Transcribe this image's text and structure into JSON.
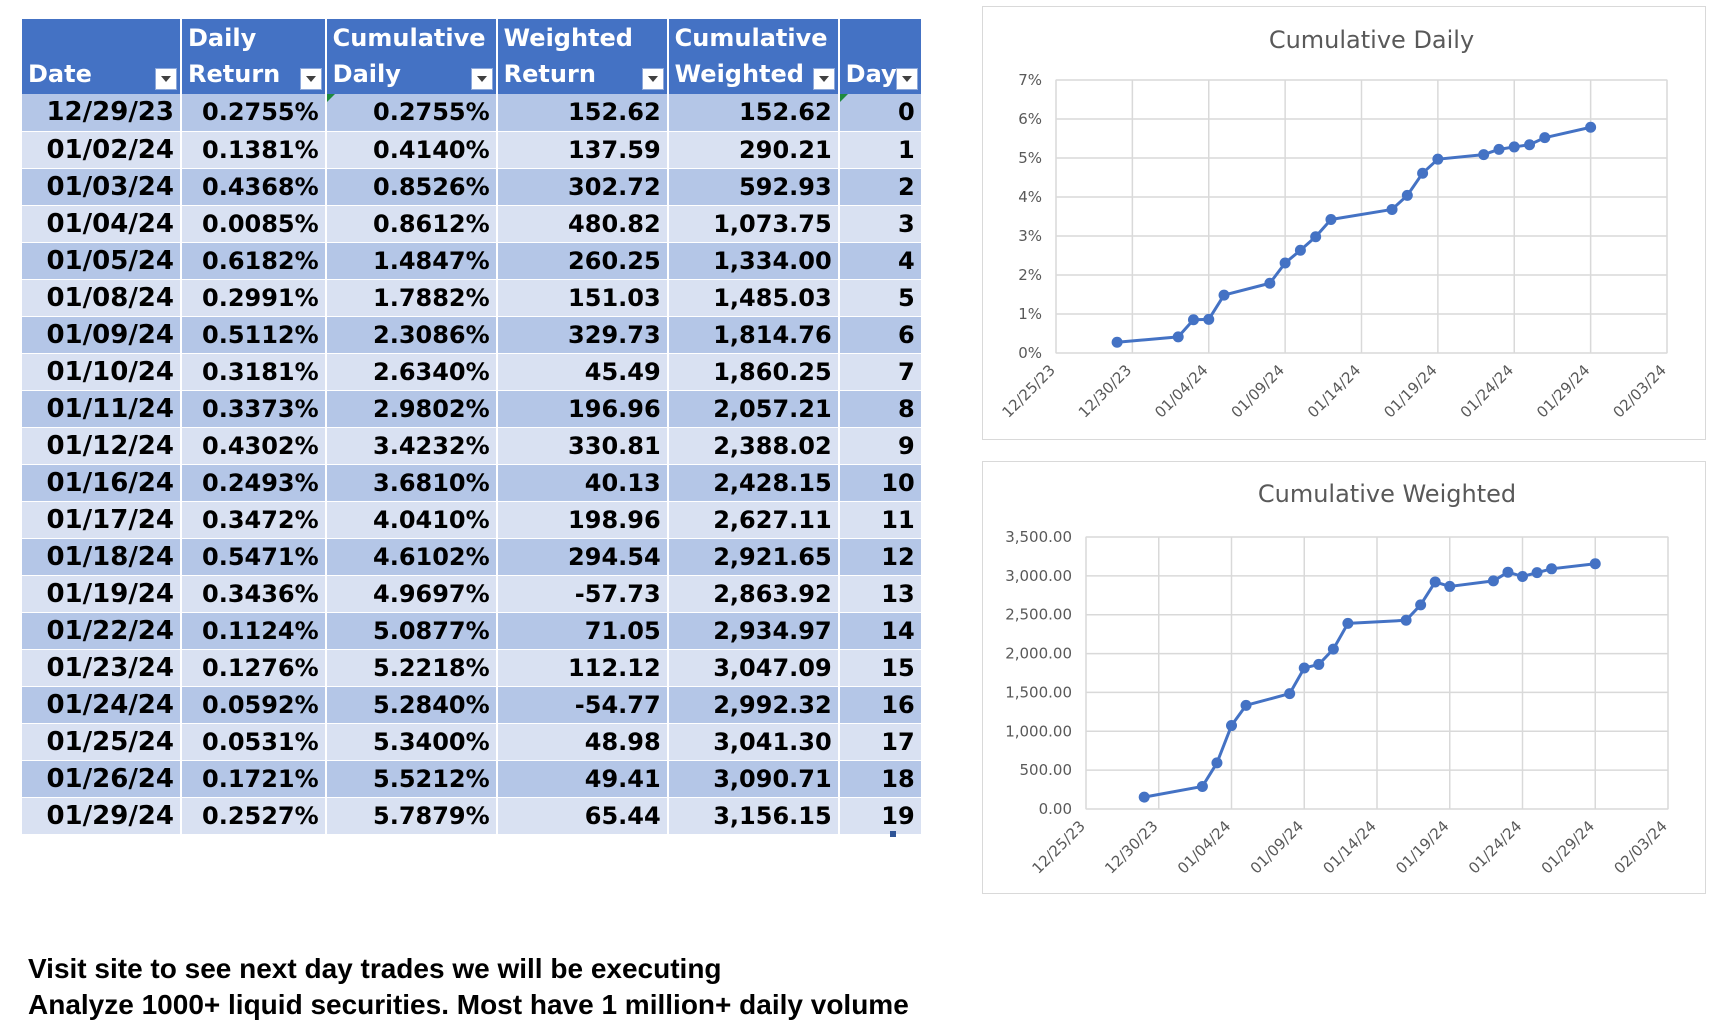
{
  "table": {
    "headers": [
      {
        "lines": [
          "",
          "Date"
        ],
        "filter": "filter-dropdown"
      },
      {
        "lines": [
          "Daily",
          "Return"
        ],
        "filter": "filter-dropdown"
      },
      {
        "lines": [
          "Cumulative",
          "Daily"
        ],
        "filter": "filter-dropdown"
      },
      {
        "lines": [
          "Weighted",
          "Return"
        ],
        "filter": "filter-dropdown"
      },
      {
        "lines": [
          "Cumulative",
          "Weighted"
        ],
        "filter": "filter-dropdown"
      },
      {
        "lines": [
          "",
          "Day"
        ],
        "filter": "filter-dropdown"
      }
    ],
    "rows": [
      [
        "12/29/23",
        "0.2755%",
        "0.2755%",
        "152.62",
        "152.62",
        "0"
      ],
      [
        "01/02/24",
        "0.1381%",
        "0.4140%",
        "137.59",
        "290.21",
        "1"
      ],
      [
        "01/03/24",
        "0.4368%",
        "0.8526%",
        "302.72",
        "592.93",
        "2"
      ],
      [
        "01/04/24",
        "0.0085%",
        "0.8612%",
        "480.82",
        "1,073.75",
        "3"
      ],
      [
        "01/05/24",
        "0.6182%",
        "1.4847%",
        "260.25",
        "1,334.00",
        "4"
      ],
      [
        "01/08/24",
        "0.2991%",
        "1.7882%",
        "151.03",
        "1,485.03",
        "5"
      ],
      [
        "01/09/24",
        "0.5112%",
        "2.3086%",
        "329.73",
        "1,814.76",
        "6"
      ],
      [
        "01/10/24",
        "0.3181%",
        "2.6340%",
        "45.49",
        "1,860.25",
        "7"
      ],
      [
        "01/11/24",
        "0.3373%",
        "2.9802%",
        "196.96",
        "2,057.21",
        "8"
      ],
      [
        "01/12/24",
        "0.4302%",
        "3.4232%",
        "330.81",
        "2,388.02",
        "9"
      ],
      [
        "01/16/24",
        "0.2493%",
        "3.6810%",
        "40.13",
        "2,428.15",
        "10"
      ],
      [
        "01/17/24",
        "0.3472%",
        "4.0410%",
        "198.96",
        "2,627.11",
        "11"
      ],
      [
        "01/18/24",
        "0.5471%",
        "4.6102%",
        "294.54",
        "2,921.65",
        "12"
      ],
      [
        "01/19/24",
        "0.3436%",
        "4.9697%",
        "-57.73",
        "2,863.92",
        "13"
      ],
      [
        "01/22/24",
        "0.1124%",
        "5.0877%",
        "71.05",
        "2,934.97",
        "14"
      ],
      [
        "01/23/24",
        "0.1276%",
        "5.2218%",
        "112.12",
        "3,047.09",
        "15"
      ],
      [
        "01/24/24",
        "0.0592%",
        "5.2840%",
        "-54.77",
        "2,992.32",
        "16"
      ],
      [
        "01/25/24",
        "0.0531%",
        "5.3400%",
        "48.98",
        "3,041.30",
        "17"
      ],
      [
        "01/26/24",
        "0.1721%",
        "5.5212%",
        "49.41",
        "3,090.71",
        "18"
      ],
      [
        "01/29/24",
        "0.2527%",
        "5.7879%",
        "65.44",
        "3,156.15",
        "19"
      ]
    ]
  },
  "chart_data": [
    {
      "type": "line",
      "title": "Cumulative Daily",
      "xlabel": "",
      "ylabel": "",
      "x": [
        "12/29/23",
        "01/02/24",
        "01/03/24",
        "01/04/24",
        "01/05/24",
        "01/08/24",
        "01/09/24",
        "01/10/24",
        "01/11/24",
        "01/12/24",
        "01/16/24",
        "01/17/24",
        "01/18/24",
        "01/19/24",
        "01/22/24",
        "01/23/24",
        "01/24/24",
        "01/25/24",
        "01/26/24",
        "01/29/24"
      ],
      "series": [
        {
          "values": [
            0.2755,
            0.414,
            0.8526,
            0.8612,
            1.4847,
            1.7882,
            2.3086,
            2.634,
            2.9802,
            3.4232,
            3.681,
            4.041,
            4.6102,
            4.9697,
            5.0877,
            5.2218,
            5.284,
            5.34,
            5.5212,
            5.7879
          ],
          "color": "#4472c4"
        }
      ],
      "xlim": [
        "12/25/23",
        "02/03/24"
      ],
      "ylim": [
        0,
        7
      ],
      "x_ticks": [
        "12/25/23",
        "12/30/23",
        "01/04/24",
        "01/09/24",
        "01/14/24",
        "01/19/24",
        "01/24/24",
        "01/29/24",
        "02/03/24"
      ],
      "y_ticks": [
        0,
        1,
        2,
        3,
        4,
        5,
        6,
        7
      ],
      "y_tick_labels": [
        "0%",
        "1%",
        "2%",
        "3%",
        "4%",
        "5%",
        "6%",
        "7%"
      ],
      "grid": true,
      "legend": "none"
    },
    {
      "type": "line",
      "title": "Cumulative Weighted",
      "xlabel": "",
      "ylabel": "",
      "x": [
        "12/29/23",
        "01/02/24",
        "01/03/24",
        "01/04/24",
        "01/05/24",
        "01/08/24",
        "01/09/24",
        "01/10/24",
        "01/11/24",
        "01/12/24",
        "01/16/24",
        "01/17/24",
        "01/18/24",
        "01/19/24",
        "01/22/24",
        "01/23/24",
        "01/24/24",
        "01/25/24",
        "01/26/24",
        "01/29/24"
      ],
      "series": [
        {
          "values": [
            152.62,
            290.21,
            592.93,
            1073.75,
            1334.0,
            1485.03,
            1814.76,
            1860.25,
            2057.21,
            2388.02,
            2428.15,
            2627.11,
            2921.65,
            2863.92,
            2934.97,
            3047.09,
            2992.32,
            3041.3,
            3090.71,
            3156.15
          ],
          "color": "#4472c4"
        }
      ],
      "xlim": [
        "12/25/23",
        "02/03/24"
      ],
      "ylim": [
        0,
        3500
      ],
      "x_ticks": [
        "12/25/23",
        "12/30/23",
        "01/04/24",
        "01/09/24",
        "01/14/24",
        "01/19/24",
        "01/24/24",
        "01/29/24",
        "02/03/24"
      ],
      "y_ticks": [
        0,
        500,
        1000,
        1500,
        2000,
        2500,
        3000,
        3500
      ],
      "y_tick_labels": [
        "0.00",
        "500.00",
        "1,000.00",
        "1,500.00",
        "2,000.00",
        "2,500.00",
        "3,000.00",
        "3,500.00"
      ],
      "grid": true,
      "legend": "none"
    }
  ],
  "footer": {
    "line1": "Visit site to see next day trades we will be executing",
    "line2": "Analyze 1000+ liquid securities.  Most have 1 million+ daily volume"
  },
  "colors": {
    "header_bg": "#4472c4",
    "band_dark": "#b4c6e7",
    "band_light": "#d9e1f2",
    "series": "#4472c4",
    "grid": "#d9d9d9"
  }
}
